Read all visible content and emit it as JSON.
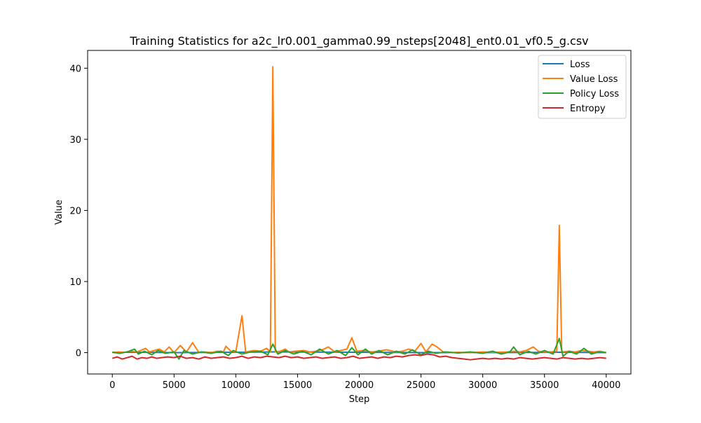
{
  "chart_data": {
    "type": "line",
    "title": "Training Statistics for a2c_lr0.001_gamma0.99_nsteps[2048]_ent0.01_vf0.5_g.csv",
    "xlabel": "Step",
    "ylabel": "Value",
    "xlim": [
      -2000,
      42000
    ],
    "ylim": [
      -3.0,
      42.5
    ],
    "xticks": [
      0,
      5000,
      10000,
      15000,
      20000,
      25000,
      30000,
      35000,
      40000
    ],
    "yticks": [
      0,
      10,
      20,
      30,
      40
    ],
    "legend_position": "top-right",
    "grid": false,
    "series": [
      {
        "name": "Loss",
        "color": "#1f77b4",
        "x": [
          0,
          2000,
          5000,
          10000,
          13000,
          20000,
          25000,
          30000,
          36200,
          40000
        ],
        "y": [
          0.05,
          0.05,
          0.0,
          0.05,
          0.1,
          0.05,
          0.0,
          0.0,
          0.05,
          0.0
        ]
      },
      {
        "name": "Value Loss",
        "color": "#ff7f0e",
        "x": [
          0,
          500,
          1000,
          1500,
          2000,
          2700,
          3000,
          3400,
          3800,
          4200,
          4600,
          5000,
          5500,
          6000,
          6500,
          7000,
          7500,
          8000,
          8500,
          9000,
          9200,
          9600,
          10000,
          10500,
          10800,
          11500,
          12000,
          12500,
          12800,
          13000,
          13200,
          13600,
          14000,
          14300,
          14800,
          15500,
          16000,
          16500,
          17000,
          17500,
          18000,
          18500,
          19000,
          19400,
          19800,
          20300,
          21000,
          21500,
          22200,
          23000,
          23500,
          24000,
          24500,
          25000,
          25400,
          25900,
          26300,
          26800,
          27500,
          28000,
          29000,
          30000,
          31000,
          32000,
          32600,
          33000,
          33500,
          34100,
          34500,
          35000,
          35500,
          36000,
          36200,
          36400,
          37000,
          37500,
          38000,
          38500,
          39000,
          39500,
          40000
        ],
        "y": [
          0.0,
          0.1,
          0.05,
          0.2,
          0.1,
          0.6,
          0.1,
          0.3,
          0.5,
          0.1,
          0.8,
          0.0,
          1.0,
          0.1,
          1.4,
          0.05,
          0.1,
          0.0,
          0.2,
          0.1,
          0.9,
          0.2,
          0.1,
          5.2,
          0.1,
          0.3,
          0.2,
          0.6,
          0.1,
          40.2,
          0.1,
          0.2,
          0.5,
          0.1,
          0.2,
          0.3,
          0.1,
          0.2,
          0.4,
          0.8,
          0.1,
          0.3,
          0.5,
          2.1,
          0.2,
          0.3,
          0.1,
          0.2,
          0.4,
          0.1,
          0.2,
          0.5,
          0.2,
          1.3,
          0.1,
          1.2,
          0.8,
          0.1,
          0.0,
          0.05,
          0.0,
          0.1,
          0.05,
          0.1,
          0.2,
          0.1,
          0.3,
          0.8,
          0.2,
          0.1,
          0.1,
          0.2,
          17.9,
          0.1,
          0.2,
          0.1,
          0.3,
          0.2,
          0.1,
          0.2,
          0.0
        ]
      },
      {
        "name": "Policy Loss",
        "color": "#2ca02c",
        "x": [
          0,
          600,
          1200,
          1800,
          2100,
          2600,
          3200,
          3700,
          4300,
          5000,
          5400,
          5800,
          6500,
          7200,
          8000,
          8800,
          9400,
          9800,
          10500,
          11200,
          12000,
          12600,
          13000,
          13400,
          14000,
          14700,
          15400,
          16100,
          16800,
          17500,
          18200,
          18900,
          19400,
          19900,
          20500,
          21000,
          21600,
          22300,
          23000,
          23700,
          24300,
          25000,
          25600,
          26200,
          27000,
          28000,
          29000,
          30000,
          30800,
          31500,
          32200,
          32500,
          33000,
          33700,
          34300,
          35000,
          35700,
          36200,
          36500,
          37000,
          37600,
          38200,
          38800,
          39400,
          40000
        ],
        "y": [
          0.05,
          -0.1,
          0.1,
          0.5,
          -0.2,
          0.2,
          -0.3,
          0.3,
          -0.1,
          0.1,
          -0.9,
          0.3,
          -0.2,
          0.1,
          -0.1,
          0.2,
          -0.4,
          0.3,
          -0.2,
          0.1,
          0.2,
          -0.3,
          1.2,
          -0.2,
          0.3,
          -0.2,
          0.2,
          -0.3,
          0.5,
          -0.2,
          0.3,
          -0.4,
          0.7,
          -0.3,
          0.5,
          -0.2,
          0.3,
          -0.3,
          0.2,
          -0.2,
          0.4,
          -0.3,
          0.2,
          -0.1,
          0.1,
          -0.05,
          0.1,
          -0.1,
          0.2,
          -0.2,
          0.1,
          0.8,
          -0.3,
          0.2,
          -0.2,
          0.3,
          -0.2,
          2.0,
          -0.5,
          0.2,
          -0.2,
          0.6,
          -0.2,
          0.1,
          0.0
        ]
      },
      {
        "name": "Entropy",
        "color": "#d62728",
        "x": [
          0,
          400,
          800,
          1200,
          1600,
          2000,
          2400,
          2800,
          3200,
          3600,
          4000,
          4500,
          5000,
          5500,
          6000,
          6500,
          7000,
          7500,
          8000,
          8500,
          9000,
          9500,
          10000,
          10500,
          11000,
          11500,
          12000,
          12500,
          13000,
          13500,
          14000,
          14500,
          15000,
          15500,
          16000,
          16500,
          17000,
          17500,
          18000,
          18500,
          19000,
          19500,
          20000,
          20500,
          21000,
          21500,
          22000,
          22500,
          23000,
          23500,
          24000,
          24500,
          25000,
          25500,
          26000,
          26500,
          27000,
          27500,
          28000,
          28500,
          29000,
          29500,
          30000,
          30500,
          31000,
          31500,
          32000,
          32500,
          33000,
          33500,
          34000,
          34500,
          35000,
          35500,
          36000,
          36500,
          37000,
          37500,
          38000,
          38500,
          39000,
          39500,
          40000
        ],
        "y": [
          -0.8,
          -0.6,
          -0.9,
          -0.7,
          -0.5,
          -0.9,
          -0.7,
          -0.8,
          -0.6,
          -0.8,
          -0.7,
          -0.6,
          -0.7,
          -0.5,
          -0.8,
          -0.7,
          -0.9,
          -0.6,
          -0.8,
          -0.7,
          -0.6,
          -0.8,
          -0.7,
          -0.5,
          -0.8,
          -0.6,
          -0.7,
          -0.5,
          -0.6,
          -0.7,
          -0.5,
          -0.7,
          -0.6,
          -0.8,
          -0.7,
          -0.6,
          -0.8,
          -0.7,
          -0.6,
          -0.8,
          -0.7,
          -0.5,
          -0.8,
          -0.7,
          -0.6,
          -0.8,
          -0.6,
          -0.7,
          -0.5,
          -0.6,
          -0.4,
          -0.3,
          -0.4,
          -0.2,
          -0.3,
          -0.6,
          -0.5,
          -0.7,
          -0.8,
          -0.9,
          -1.0,
          -0.9,
          -0.8,
          -0.9,
          -0.8,
          -0.9,
          -0.8,
          -0.9,
          -0.7,
          -0.8,
          -0.9,
          -0.8,
          -0.7,
          -0.8,
          -0.9,
          -0.7,
          -0.8,
          -0.9,
          -0.8,
          -0.9,
          -0.8,
          -0.7,
          -0.8
        ]
      }
    ]
  }
}
